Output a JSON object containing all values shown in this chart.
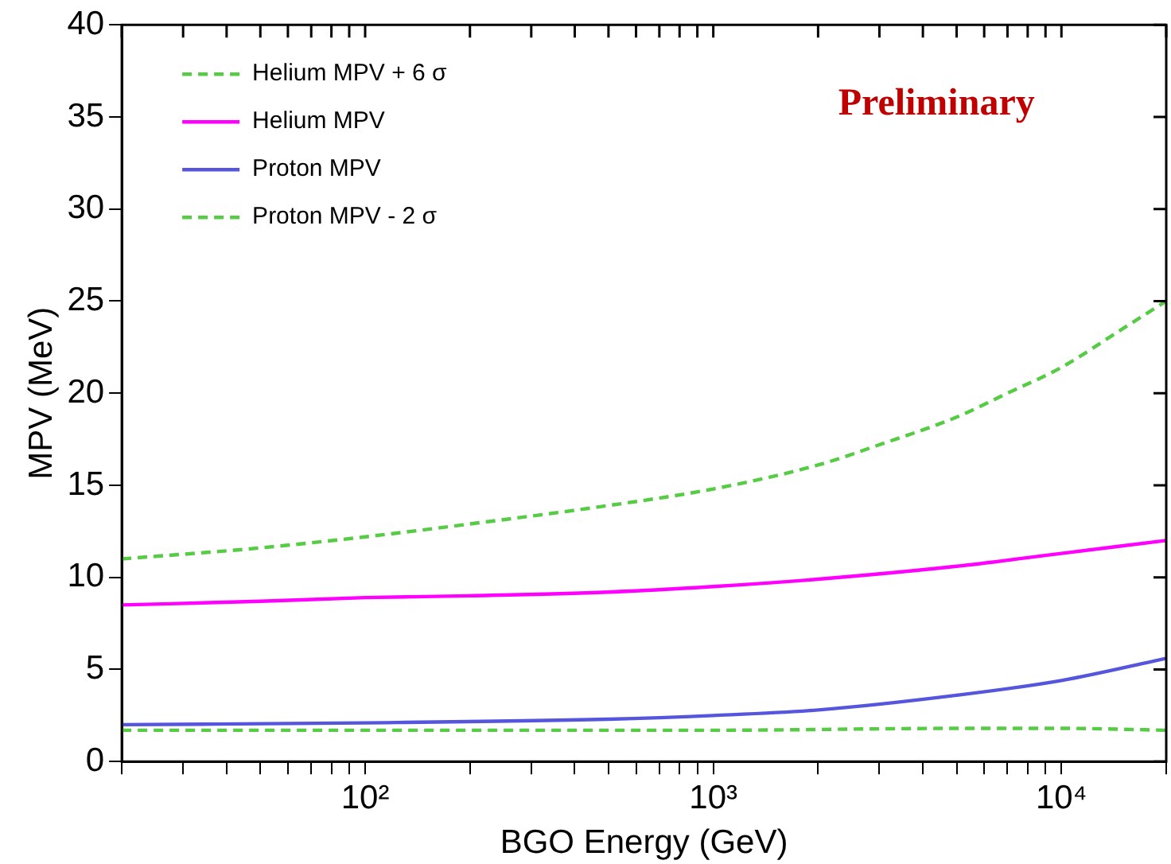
{
  "chart_data": {
    "type": "line",
    "xlabel": "BGO Energy (GeV)",
    "ylabel": "MPV (MeV)",
    "log": "x",
    "xlim": [
      20,
      20000
    ],
    "ylim": [
      0,
      40
    ],
    "xticks": [
      {
        "value": 20,
        "label": null
      },
      {
        "value": 30,
        "label": null
      },
      {
        "value": 40,
        "label": null
      },
      {
        "value": 50,
        "label": null
      },
      {
        "value": 60,
        "label": null
      },
      {
        "value": 70,
        "label": null
      },
      {
        "value": 80,
        "label": null
      },
      {
        "value": 90,
        "label": null
      },
      {
        "value": 100,
        "label": "10²"
      },
      {
        "value": 200,
        "label": null
      },
      {
        "value": 300,
        "label": null
      },
      {
        "value": 400,
        "label": null
      },
      {
        "value": 500,
        "label": null
      },
      {
        "value": 600,
        "label": null
      },
      {
        "value": 700,
        "label": null
      },
      {
        "value": 800,
        "label": null
      },
      {
        "value": 900,
        "label": null
      },
      {
        "value": 1000,
        "label": "10³"
      },
      {
        "value": 2000,
        "label": null
      },
      {
        "value": 3000,
        "label": null
      },
      {
        "value": 4000,
        "label": null
      },
      {
        "value": 5000,
        "label": null
      },
      {
        "value": 6000,
        "label": null
      },
      {
        "value": 7000,
        "label": null
      },
      {
        "value": 8000,
        "label": null
      },
      {
        "value": 9000,
        "label": null
      },
      {
        "value": 10000,
        "label": "10⁴"
      },
      {
        "value": 20000,
        "label": null
      }
    ],
    "yticks": [
      0,
      5,
      10,
      15,
      20,
      25,
      30,
      35,
      40
    ],
    "grid": false,
    "legend": "top left",
    "marker": "none",
    "annotations": [
      "Preliminary"
    ],
    "series": [
      {
        "name": "Helium MPV + 6 σ",
        "color": "#55cc44",
        "line_style": "dashed",
        "x": [
          20,
          50,
          100,
          200,
          500,
          1000,
          2000,
          3000,
          5000,
          7000,
          10000,
          15000,
          20000
        ],
        "values": [
          11.0,
          11.6,
          12.2,
          12.9,
          13.9,
          14.8,
          16.1,
          17.2,
          18.7,
          20.0,
          21.4,
          23.5,
          25.0
        ]
      },
      {
        "name": "Helium MPV",
        "color": "#ff00ff",
        "line_style": "solid",
        "x": [
          20,
          50,
          100,
          200,
          500,
          1000,
          2000,
          5000,
          10000,
          20000
        ],
        "values": [
          8.5,
          8.7,
          8.9,
          9.0,
          9.2,
          9.5,
          9.9,
          10.6,
          11.3,
          12.0
        ]
      },
      {
        "name": "Proton MPV",
        "color": "#5555dd",
        "line_style": "solid",
        "x": [
          20,
          100,
          500,
          1000,
          2000,
          5000,
          10000,
          20000
        ],
        "values": [
          2.0,
          2.1,
          2.3,
          2.5,
          2.8,
          3.6,
          4.4,
          5.6
        ]
      },
      {
        "name": "Proton MPV - 2 σ",
        "color": "#55cc44",
        "line_style": "dashed",
        "x": [
          20,
          100,
          1000,
          5000,
          10000,
          20000
        ],
        "values": [
          1.7,
          1.7,
          1.7,
          1.8,
          1.8,
          1.7
        ]
      }
    ]
  }
}
